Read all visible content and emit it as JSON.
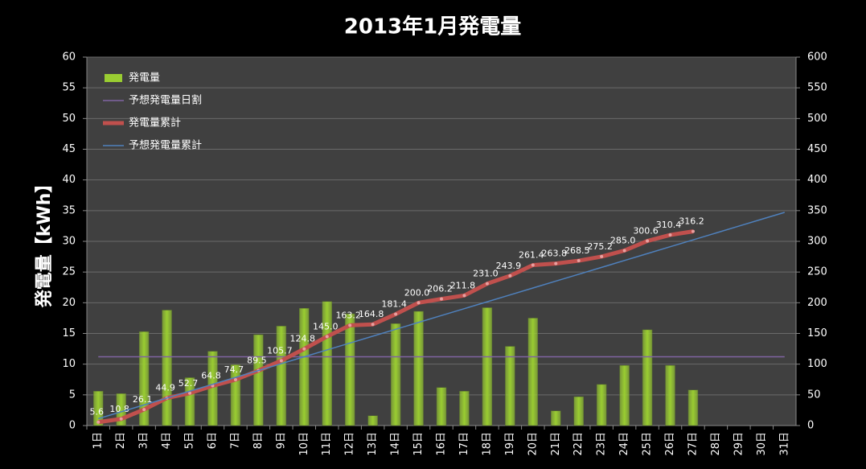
{
  "chart_data": {
    "type": "combo",
    "title": "2013年1月発電量",
    "y_label": "発電量【kWh】",
    "categories": [
      "1日",
      "2日",
      "3日",
      "4日",
      "5日",
      "6日",
      "7日",
      "8日",
      "9日",
      "10日",
      "11日",
      "12日",
      "13日",
      "14日",
      "15日",
      "16日",
      "17日",
      "18日",
      "19日",
      "20日",
      "21日",
      "22日",
      "23日",
      "24日",
      "25日",
      "26日",
      "27日",
      "28日",
      "29日",
      "30日",
      "31日"
    ],
    "ylim": [
      0,
      60
    ],
    "yticks": [
      0,
      5,
      10,
      15,
      20,
      25,
      30,
      35,
      40,
      45,
      50,
      55,
      60
    ],
    "y2lim": [
      0,
      600
    ],
    "y2ticks": [
      0,
      50,
      100,
      150,
      200,
      250,
      300,
      350,
      400,
      450,
      500,
      550,
      600
    ],
    "grid": true,
    "legend": "top-left",
    "series": [
      {
        "name": "発電量",
        "type": "bar",
        "color": "#9acd32",
        "values": [
          5.6,
          5.2,
          15.3,
          18.8,
          7.8,
          12.1,
          9.9,
          14.8,
          16.2,
          19.1,
          20.2,
          18.2,
          1.6,
          16.6,
          18.6,
          6.2,
          5.6,
          19.2,
          12.9,
          17.5,
          2.4,
          4.7,
          6.7,
          9.8,
          15.6,
          9.8,
          5.8,
          null,
          null,
          null,
          null
        ]
      },
      {
        "name": "予想発電量日割",
        "type": "line",
        "color": "#8064a2",
        "values": [
          11.2,
          11.2,
          11.2,
          11.2,
          11.2,
          11.2,
          11.2,
          11.2,
          11.2,
          11.2,
          11.2,
          11.2,
          11.2,
          11.2,
          11.2,
          11.2,
          11.2,
          11.2,
          11.2,
          11.2,
          11.2,
          11.2,
          11.2,
          11.2,
          11.2,
          11.2,
          11.2,
          11.2,
          11.2,
          11.2,
          11.2
        ]
      },
      {
        "name": "発電量累計",
        "type": "line",
        "axis": "y2",
        "color": "#c0504d",
        "markers": true,
        "values": [
          5.6,
          10.8,
          26.1,
          44.9,
          52.7,
          64.8,
          74.7,
          89.5,
          105.7,
          124.8,
          145.0,
          163.2,
          164.8,
          181.4,
          200.0,
          206.2,
          211.8,
          231.0,
          243.9,
          261.4,
          263.8,
          268.5,
          275.2,
          285.0,
          300.6,
          310.4,
          316.2,
          null,
          null,
          null,
          null
        ],
        "value_labels": [
          "5.6",
          "10.8",
          "26.1",
          "44.9",
          "52.7",
          "64.8",
          "74.7",
          "89.5",
          "105.7",
          "124.8",
          "145.0",
          "163.2",
          "164.8",
          "181.4",
          "200.0",
          "206.2",
          "211.8",
          "231.0",
          "243.9",
          "261.4",
          "263.8",
          "268.5",
          "275.2",
          "285.0",
          "300.6",
          "310.4",
          "316.2",
          null,
          null,
          null,
          null
        ]
      },
      {
        "name": "予想発電量累計",
        "type": "line",
        "axis": "y2",
        "color": "#4f81bd",
        "values": [
          11.2,
          22.4,
          33.6,
          44.8,
          56,
          67.2,
          78.4,
          89.6,
          100.8,
          112,
          123.2,
          134.4,
          145.6,
          156.8,
          168,
          179.2,
          190.4,
          201.6,
          212.8,
          224,
          235.2,
          246.4,
          257.6,
          268.8,
          280,
          291.2,
          302.4,
          313.6,
          324.8,
          336,
          347.2
        ]
      }
    ]
  }
}
